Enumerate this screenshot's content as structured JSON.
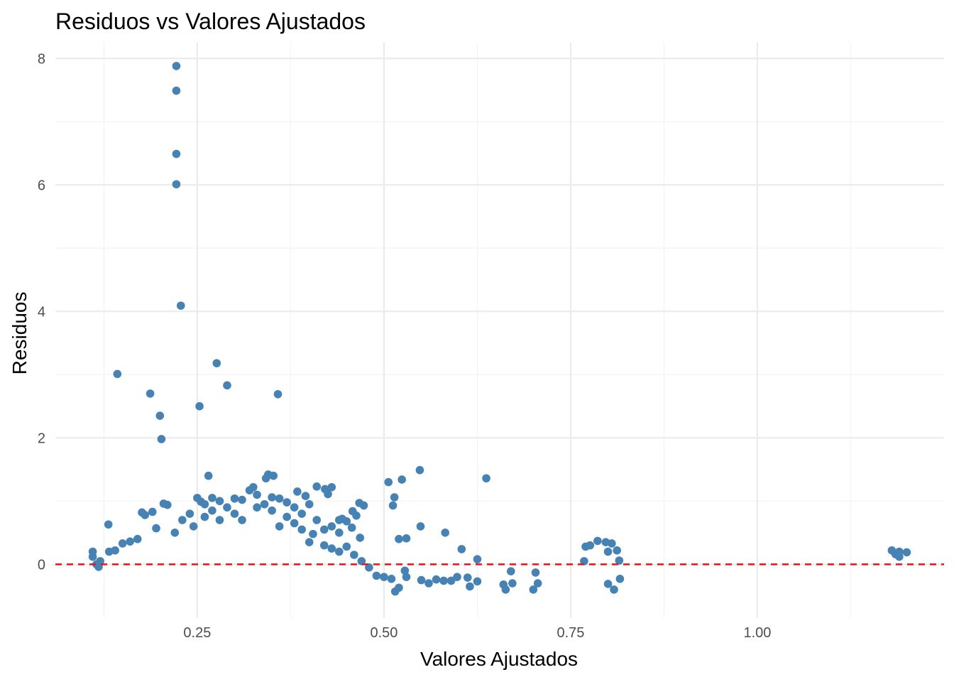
{
  "chart_data": {
    "type": "scatter",
    "title": "Residuos vs Valores Ajustados",
    "xlabel": "Valores Ajustados",
    "ylabel": "Residuos",
    "xlim": [
      0.06,
      1.25
    ],
    "ylim": [
      -0.85,
      8.25
    ],
    "x_ticks": [
      0.25,
      0.5,
      0.75,
      1.0
    ],
    "x_tick_labels": [
      "0.25",
      "0.50",
      "0.75",
      "1.00"
    ],
    "y_ticks": [
      0,
      2,
      4,
      6,
      8
    ],
    "y_tick_labels": [
      "0",
      "2",
      "4",
      "6",
      "8"
    ],
    "grid": true,
    "point_color": "#4682B4",
    "reference_line": {
      "y": 0,
      "color": "#E8141A",
      "style": "dashed"
    },
    "points": [
      [
        0.222,
        7.88
      ],
      [
        0.222,
        7.49
      ],
      [
        0.222,
        6.49
      ],
      [
        0.222,
        6.01
      ],
      [
        0.228,
        4.09
      ],
      [
        0.276,
        3.18
      ],
      [
        0.143,
        3.01
      ],
      [
        0.29,
        2.83
      ],
      [
        0.358,
        2.69
      ],
      [
        0.187,
        2.7
      ],
      [
        0.253,
        2.5
      ],
      [
        0.2,
        2.35
      ],
      [
        0.202,
        1.98
      ],
      [
        0.548,
        1.49
      ],
      [
        0.637,
        1.36
      ],
      [
        0.524,
        1.34
      ],
      [
        0.506,
        1.3
      ],
      [
        0.265,
        1.4
      ],
      [
        0.345,
        1.42
      ],
      [
        0.352,
        1.4
      ],
      [
        0.342,
        1.36
      ],
      [
        0.41,
        1.23
      ],
      [
        0.421,
        1.19
      ],
      [
        0.43,
        1.22
      ],
      [
        0.425,
        1.11
      ],
      [
        0.384,
        1.15
      ],
      [
        0.395,
        1.08
      ],
      [
        0.514,
        1.06
      ],
      [
        0.512,
        0.93
      ],
      [
        0.467,
        0.97
      ],
      [
        0.473,
        0.93
      ],
      [
        0.458,
        0.84
      ],
      [
        0.463,
        0.77
      ],
      [
        0.549,
        0.6
      ],
      [
        0.582,
        0.5
      ],
      [
        0.52,
        0.4
      ],
      [
        0.53,
        0.41
      ],
      [
        0.604,
        0.24
      ],
      [
        0.625,
        0.08
      ],
      [
        0.457,
        0.58
      ],
      [
        0.44,
        0.7
      ],
      [
        0.444,
        0.72
      ],
      [
        0.468,
        0.42
      ],
      [
        0.131,
        0.63
      ],
      [
        0.205,
        0.96
      ],
      [
        0.21,
        0.94
      ],
      [
        0.25,
        1.05
      ],
      [
        0.255,
        0.99
      ],
      [
        0.26,
        0.95
      ],
      [
        0.3,
        1.04
      ],
      [
        0.32,
        1.17
      ],
      [
        0.325,
        1.22
      ],
      [
        0.33,
        1.1
      ],
      [
        0.28,
        1.0
      ],
      [
        0.27,
        1.05
      ],
      [
        0.35,
        1.06
      ],
      [
        0.36,
        1.04
      ],
      [
        0.31,
        1.02
      ],
      [
        0.37,
        0.98
      ],
      [
        0.38,
        0.9
      ],
      [
        0.4,
        0.95
      ],
      [
        0.39,
        0.8
      ],
      [
        0.41,
        0.7
      ],
      [
        0.43,
        0.6
      ],
      [
        0.45,
        0.68
      ],
      [
        0.42,
        0.55
      ],
      [
        0.44,
        0.5
      ],
      [
        0.405,
        0.48
      ],
      [
        0.176,
        0.82
      ],
      [
        0.18,
        0.78
      ],
      [
        0.19,
        0.83
      ],
      [
        0.195,
        0.57
      ],
      [
        0.17,
        0.4
      ],
      [
        0.16,
        0.36
      ],
      [
        0.15,
        0.33
      ],
      [
        0.14,
        0.22
      ],
      [
        0.132,
        0.2
      ],
      [
        0.11,
        0.2
      ],
      [
        0.11,
        0.12
      ],
      [
        0.12,
        0.05
      ],
      [
        0.115,
        0.0
      ],
      [
        0.118,
        -0.04
      ],
      [
        0.768,
        0.05
      ],
      [
        0.77,
        0.28
      ],
      [
        0.776,
        0.3
      ],
      [
        0.786,
        0.37
      ],
      [
        0.797,
        0.35
      ],
      [
        0.805,
        0.33
      ],
      [
        0.8,
        0.2
      ],
      [
        0.812,
        0.22
      ],
      [
        0.815,
        0.06
      ],
      [
        0.816,
        -0.23
      ],
      [
        0.8,
        -0.31
      ],
      [
        0.808,
        -0.4
      ],
      [
        0.703,
        -0.13
      ],
      [
        0.706,
        -0.3
      ],
      [
        0.7,
        -0.4
      ],
      [
        0.67,
        -0.11
      ],
      [
        0.672,
        -0.3
      ],
      [
        0.66,
        -0.32
      ],
      [
        0.663,
        -0.4
      ],
      [
        0.625,
        -0.27
      ],
      [
        0.615,
        -0.35
      ],
      [
        0.612,
        -0.21
      ],
      [
        0.598,
        -0.2
      ],
      [
        0.59,
        -0.26
      ],
      [
        0.58,
        -0.26
      ],
      [
        0.57,
        -0.24
      ],
      [
        0.56,
        -0.3
      ],
      [
        0.55,
        -0.25
      ],
      [
        0.528,
        -0.1
      ],
      [
        0.53,
        -0.2
      ],
      [
        0.52,
        -0.37
      ],
      [
        0.515,
        -0.43
      ],
      [
        0.51,
        -0.23
      ],
      [
        0.5,
        -0.2
      ],
      [
        0.49,
        -0.18
      ],
      [
        1.18,
        0.22
      ],
      [
        1.19,
        0.2
      ],
      [
        1.2,
        0.19
      ],
      [
        1.19,
        0.12
      ],
      [
        1.185,
        0.16
      ],
      [
        0.22,
        0.5
      ],
      [
        0.23,
        0.7
      ],
      [
        0.24,
        0.8
      ],
      [
        0.245,
        0.6
      ],
      [
        0.26,
        0.75
      ],
      [
        0.27,
        0.85
      ],
      [
        0.28,
        0.7
      ],
      [
        0.29,
        0.9
      ],
      [
        0.3,
        0.8
      ],
      [
        0.31,
        0.7
      ],
      [
        0.33,
        0.9
      ],
      [
        0.34,
        0.95
      ],
      [
        0.35,
        0.85
      ],
      [
        0.36,
        0.6
      ],
      [
        0.37,
        0.75
      ],
      [
        0.38,
        0.65
      ],
      [
        0.39,
        0.55
      ],
      [
        0.4,
        0.35
      ],
      [
        0.42,
        0.3
      ],
      [
        0.43,
        0.25
      ],
      [
        0.44,
        0.2
      ],
      [
        0.45,
        0.28
      ],
      [
        0.46,
        0.15
      ],
      [
        0.47,
        0.05
      ],
      [
        0.48,
        -0.05
      ]
    ]
  }
}
